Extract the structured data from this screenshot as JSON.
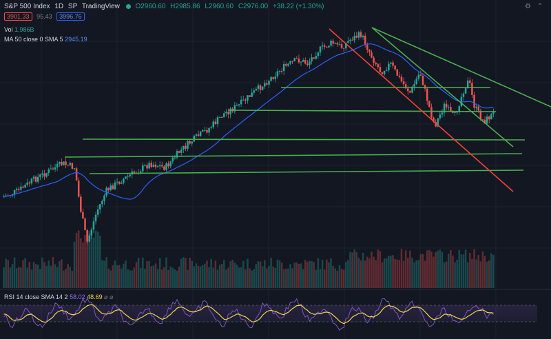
{
  "header": {
    "symbol": "S&P 500 Index",
    "interval": "1D",
    "exchange": "SP",
    "source": "TradingView",
    "open": "O2960.60",
    "high": "H2985.86",
    "low": "L2960.60",
    "close": "C2976.00",
    "change": "+38.22 (+1.30%)",
    "sell": "3901.33",
    "spread": "95.43",
    "buy": "3996.76"
  },
  "indicators": {
    "vol_label": "Vol",
    "vol_value": "1.986B",
    "ma_label": "MA 50 close 0 SMA 5",
    "ma_value": "2945.19",
    "rsi_label": "RSI 14 close SMA 14 2",
    "rsi_value": "58.02",
    "rsi_sma_value": "48.69"
  },
  "colors": {
    "background": "#131722",
    "up": "#26a69a",
    "down": "#ef5350",
    "ma": "#2962ff",
    "trend_green": "#4caf50",
    "trend_red": "#f44336",
    "rsi": "#7e57c2",
    "rsi_sma": "#f0d44c"
  },
  "chart_data": {
    "type": "candlestick",
    "series": [
      "price",
      "volume",
      "ma50",
      "rsi14",
      "rsi_sma"
    ],
    "price_points": [
      [
        0,
        0.22
      ],
      [
        0.03,
        0.25
      ],
      [
        0.06,
        0.3
      ],
      [
        0.09,
        0.34
      ],
      [
        0.12,
        0.38
      ],
      [
        0.145,
        0.36
      ],
      [
        0.155,
        0.18
      ],
      [
        0.17,
        0.0
      ],
      [
        0.19,
        0.15
      ],
      [
        0.21,
        0.25
      ],
      [
        0.24,
        0.3
      ],
      [
        0.27,
        0.34
      ],
      [
        0.3,
        0.38
      ],
      [
        0.33,
        0.36
      ],
      [
        0.36,
        0.44
      ],
      [
        0.39,
        0.5
      ],
      [
        0.42,
        0.55
      ],
      [
        0.45,
        0.62
      ],
      [
        0.48,
        0.66
      ],
      [
        0.51,
        0.72
      ],
      [
        0.54,
        0.78
      ],
      [
        0.57,
        0.84
      ],
      [
        0.6,
        0.88
      ],
      [
        0.62,
        0.86
      ],
      [
        0.64,
        0.92
      ],
      [
        0.67,
        0.96
      ],
      [
        0.69,
        0.94
      ],
      [
        0.71,
        0.98
      ],
      [
        0.73,
        1.0
      ],
      [
        0.75,
        0.9
      ],
      [
        0.77,
        0.82
      ],
      [
        0.79,
        0.86
      ],
      [
        0.81,
        0.78
      ],
      [
        0.83,
        0.72
      ],
      [
        0.85,
        0.82
      ],
      [
        0.87,
        0.64
      ],
      [
        0.88,
        0.56
      ],
      [
        0.9,
        0.66
      ],
      [
        0.92,
        0.6
      ],
      [
        0.94,
        0.74
      ],
      [
        0.95,
        0.78
      ],
      [
        0.96,
        0.66
      ],
      [
        0.98,
        0.58
      ],
      [
        1.0,
        0.62
      ]
    ],
    "trendlines": [
      {
        "name": "support-1",
        "kind": "horizontal"
      },
      {
        "name": "support-2",
        "kind": "horizontal"
      },
      {
        "name": "support-3",
        "kind": "horizontal"
      },
      {
        "name": "support-4",
        "kind": "horizontal"
      },
      {
        "name": "support-5",
        "kind": "horizontal"
      },
      {
        "name": "support-6",
        "kind": "horizontal"
      },
      {
        "name": "downtrend-1",
        "kind": "diagonal"
      },
      {
        "name": "downtrend-2",
        "kind": "diagonal"
      },
      {
        "name": "channel-lower",
        "kind": "diagonal-red"
      }
    ]
  }
}
